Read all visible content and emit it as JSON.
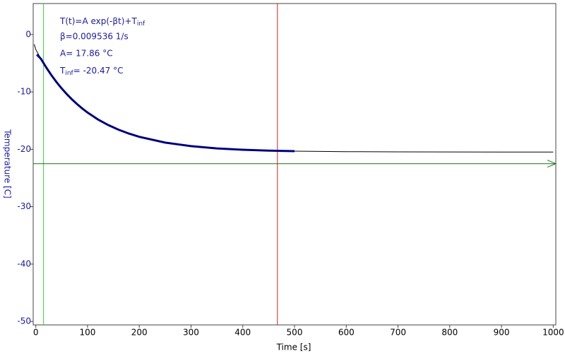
{
  "chart_data": {
    "type": "line",
    "xlabel": "Time [s]",
    "ylabel": "Temperature [C]",
    "annotations": {
      "formula": "T(t)=A exp(-βt)+T",
      "formula_sub": "inf",
      "beta": "β=0.009536 1/s",
      "amp": "A= 17.86 °C",
      "tinf": "T",
      "tinf_sub": "inf",
      "tinf_val": "= -20.47 °C"
    },
    "xlim": [
      -5,
      1005
    ],
    "ylim": [
      -50.6,
      5.4
    ],
    "xticks": [
      0,
      100,
      200,
      300,
      400,
      500,
      600,
      700,
      800,
      900,
      1000
    ],
    "yticks": [
      0,
      -10,
      -20,
      -30,
      -40,
      -50
    ],
    "series": [
      {
        "color": "#000000",
        "width": 1,
        "x": [
          -3,
          0,
          10,
          20,
          30,
          40,
          50,
          60,
          70,
          80,
          90,
          100,
          120,
          140,
          160,
          180,
          200,
          250,
          300,
          350,
          400,
          450,
          500,
          600,
          700,
          800,
          900,
          1000
        ],
        "values": [
          -1.7,
          -2.61,
          -4.24,
          -5.71,
          -7.06,
          -8.28,
          -9.39,
          -10.39,
          -11.31,
          -12.14,
          -12.9,
          -13.59,
          -14.79,
          -15.77,
          -16.59,
          -17.26,
          -17.82,
          -18.83,
          -19.45,
          -19.84,
          -20.08,
          -20.23,
          -20.32,
          -20.41,
          -20.45,
          -20.46,
          -20.47,
          -20.47
        ]
      },
      {
        "color": "#0000cc",
        "width": 3,
        "x": [
          2,
          10,
          20,
          30,
          40,
          50,
          60,
          70,
          80,
          90,
          100,
          120,
          140,
          160,
          180,
          200,
          250,
          300,
          350,
          400,
          450,
          500
        ],
        "values": [
          -3.5,
          -4.24,
          -5.71,
          -7.06,
          -8.28,
          -9.39,
          -10.39,
          -11.31,
          -12.14,
          -12.9,
          -13.59,
          -14.79,
          -15.77,
          -16.59,
          -17.26,
          -17.82,
          -18.83,
          -19.45,
          -19.84,
          -20.08,
          -20.23,
          -20.32
        ]
      }
    ],
    "vlines": [
      {
        "value": 15,
        "color": "#33cc33"
      },
      {
        "value": 467,
        "color": "#cc2222"
      }
    ],
    "hline": {
      "value": -22.5,
      "color": "#117711"
    }
  }
}
